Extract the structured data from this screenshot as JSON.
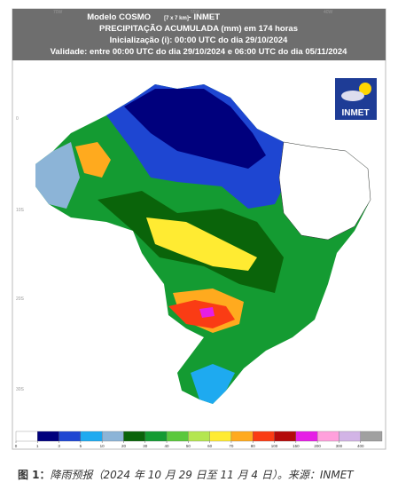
{
  "header": {
    "line1_a": "Modelo COSMO",
    "line1_b": "[7 x 7 km]",
    "line1_c": "- INMET",
    "line2": "PRECIPITAÇÃO ACUMULADA (mm) em 174 horas",
    "line3": "Inicialização (i): 00:00 UTC do dia 29/10/2024",
    "line4": "Validade: entre 00:00 UTC do dia 29/10/2024 e 06:00 UTC do dia 05/11/2024"
  },
  "grid_labels": {
    "lon": [
      "70W",
      "55W",
      "40W"
    ],
    "lat": [
      "0",
      "10S",
      "20S",
      "30S"
    ]
  },
  "logo": "INMET",
  "legend": {
    "ticks": [
      0,
      1,
      3,
      5,
      10,
      20,
      30,
      40,
      50,
      60,
      70,
      80,
      100,
      150,
      200,
      300,
      400
    ],
    "colors": [
      "#ffffff",
      "#00007d",
      "#1e46d2",
      "#1eaaf0",
      "#8cb4d7",
      "#0a640a",
      "#149b32",
      "#5ac83c",
      "#b4e650",
      "#ffeb32",
      "#ffaa1e",
      "#fa3c14",
      "#b40a0a",
      "#e61ee6",
      "#ffa0dc",
      "#d2b4e6",
      "#a0a0a0"
    ]
  },
  "caption": {
    "label": "图 1：",
    "text": "降雨预报（2024 年 10 月 29 日至 11 月 4 日）。来源：INMET"
  }
}
